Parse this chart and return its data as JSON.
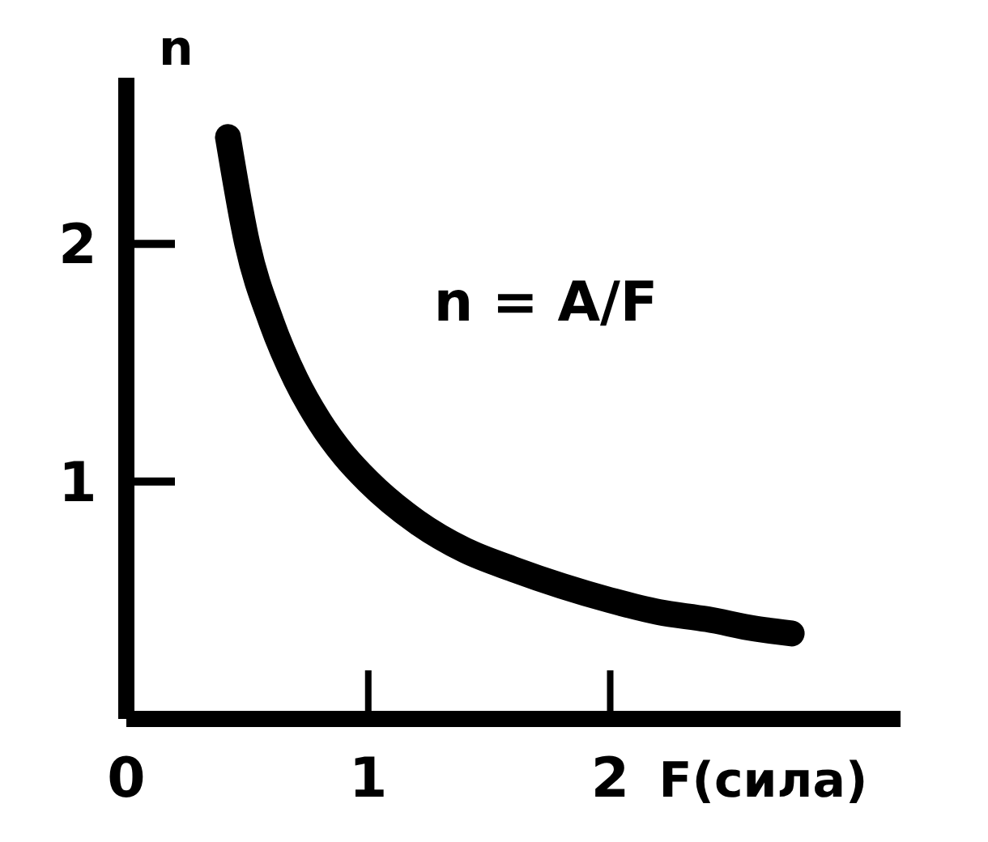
{
  "chart_data": {
    "type": "line",
    "xlabel": "F(сила)",
    "ylabel": "n",
    "annotations": [
      "n = A/F"
    ],
    "x": [
      0.42,
      0.5,
      0.6,
      0.7,
      0.8,
      0.9,
      1,
      1.2,
      1.4,
      1.6,
      1.8,
      2,
      2.2,
      2.4,
      2.6,
      2.75
    ],
    "series": [
      {
        "color": "#000000",
        "values": [
          2.45,
          2.0,
          1.67,
          1.43,
          1.25,
          1.11,
          1.0,
          0.83,
          0.71,
          0.63,
          0.56,
          0.5,
          0.45,
          0.42,
          0.38,
          0.36
        ]
      }
    ],
    "xlim": [
      0,
      3.2
    ],
    "ylim": [
      0,
      2.7
    ],
    "xticks": [
      0,
      1,
      2
    ],
    "yticks": [
      1,
      2
    ],
    "grid": false,
    "marker": "none",
    "line_style": "solid"
  }
}
